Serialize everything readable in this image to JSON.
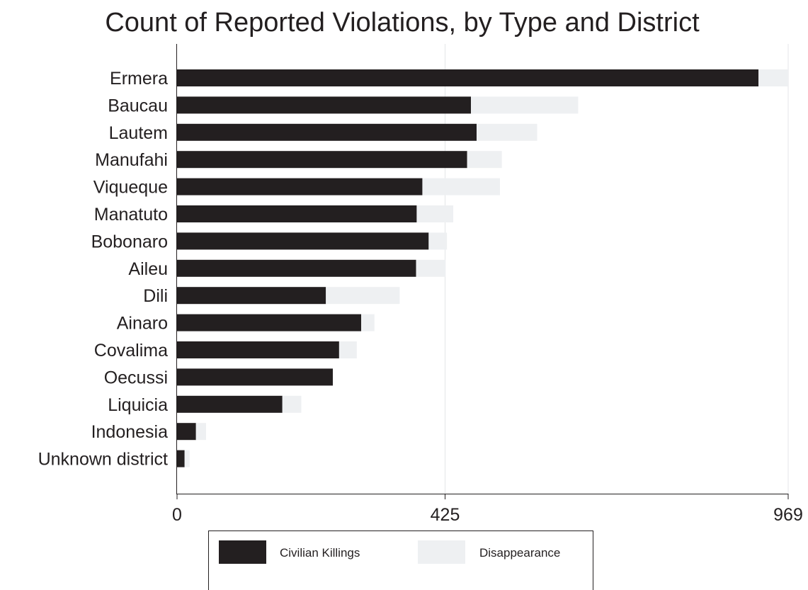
{
  "chart_data": {
    "type": "bar",
    "orientation": "horizontal",
    "stacked": true,
    "title": "Count of Reported Violations, by Type and District",
    "xlabel": "",
    "ylabel": "",
    "categories": [
      "Ermera",
      "Baucau",
      "Lautem",
      "Manufahi",
      "Viqueque",
      "Manatuto",
      "Bobonaro",
      "Aileu",
      "Dili",
      "Ainaro",
      "Covalima",
      "Oecussi",
      "Liquicia",
      "Indonesia",
      "Unknown district"
    ],
    "series": [
      {
        "name": "Civilian Killings",
        "color": "#231f20",
        "values": [
          922,
          466,
          475,
          460,
          389,
          380,
          399,
          379,
          236,
          292,
          257,
          247,
          167,
          30,
          12
        ]
      },
      {
        "name": "Disappearance",
        "color": "#eef0f2",
        "values": [
          47,
          170,
          96,
          55,
          123,
          58,
          29,
          47,
          117,
          21,
          28,
          0,
          30,
          16,
          8
        ]
      }
    ],
    "xlim": [
      0,
      969
    ],
    "xticks": [
      "0",
      "425",
      "969"
    ],
    "xtick_values": [
      0,
      425,
      969
    ],
    "gridlines": "vertical",
    "legend_position": "bottom"
  }
}
